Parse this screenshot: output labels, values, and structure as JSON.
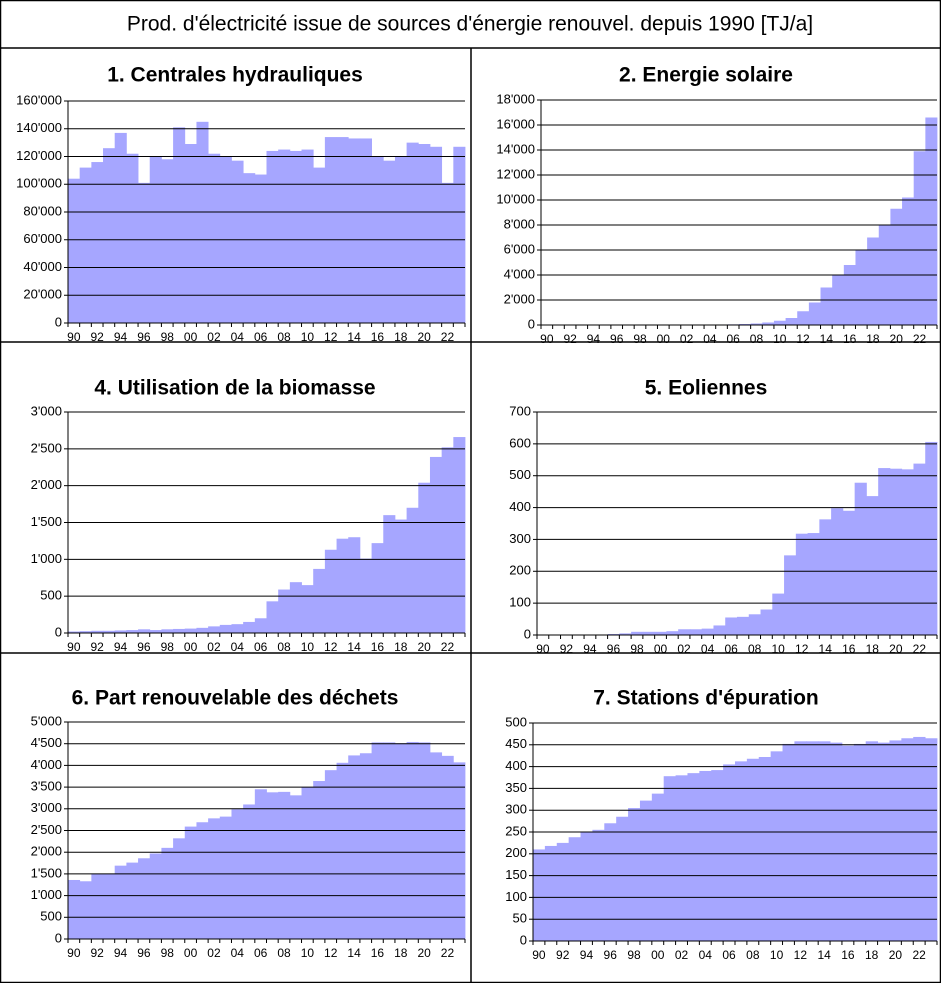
{
  "title": "Prod. d'électricité issue de sources d'énergie renouvel. depuis 1990 [TJ/a]",
  "chart_data": [
    {
      "type": "bar",
      "title": "1. Centrales hydrauliques",
      "color": "#a6a6ff",
      "grid": true,
      "categories": [
        "90",
        null,
        "92",
        null,
        "94",
        null,
        "96",
        null,
        "98",
        null,
        "00",
        null,
        "02",
        null,
        "04",
        null,
        "06",
        null,
        "08",
        null,
        "10",
        null,
        "12",
        null,
        "14",
        null,
        "16",
        null,
        "18",
        null,
        "20",
        null,
        "22",
        null
      ],
      "values": [
        104000,
        112000,
        116000,
        126000,
        137000,
        122000,
        101000,
        120000,
        118000,
        141000,
        129000,
        145000,
        122000,
        120000,
        117000,
        108000,
        107000,
        124000,
        125000,
        124000,
        125000,
        112000,
        134000,
        134000,
        133000,
        133000,
        120000,
        117000,
        120000,
        130000,
        129000,
        127000,
        101000,
        127000
      ],
      "ylim": [
        0,
        160000
      ],
      "yticks": [
        0,
        {
          "value": 20000,
          "label": "20'000"
        },
        {
          "value": 40000,
          "label": "40'000"
        },
        {
          "value": 60000,
          "label": "60'000"
        },
        {
          "value": 80000,
          "label": "80'000"
        },
        {
          "value": 100000,
          "label": "100'000"
        },
        {
          "value": 120000,
          "label": "120'000"
        },
        {
          "value": 140000,
          "label": "140'000"
        },
        {
          "value": 160000,
          "label": "160'000"
        }
      ]
    },
    {
      "type": "bar",
      "title": "2. Energie solaire",
      "color": "#a6a6ff",
      "grid": true,
      "categories": [
        "90",
        null,
        "92",
        null,
        "94",
        null,
        "96",
        null,
        "98",
        null,
        "00",
        null,
        "02",
        null,
        "04",
        null,
        "06",
        null,
        "08",
        null,
        "10",
        null,
        "12",
        null,
        "14",
        null,
        "16",
        null,
        "18",
        null,
        "20",
        null,
        "22",
        null
      ],
      "values": [
        1,
        1,
        2,
        2,
        3,
        3,
        4,
        5,
        6,
        7,
        8,
        10,
        12,
        15,
        20,
        30,
        50,
        80,
        120,
        200,
        340,
        560,
        1100,
        1800,
        3000,
        4000,
        4800,
        6000,
        7000,
        8000,
        9300,
        10200,
        13900,
        16600
      ],
      "ylim": [
        0,
        18000
      ],
      "yticks": [
        0,
        {
          "value": 2000,
          "label": "2'000"
        },
        {
          "value": 4000,
          "label": "4'000"
        },
        {
          "value": 6000,
          "label": "6'000"
        },
        {
          "value": 8000,
          "label": "8'000"
        },
        {
          "value": 10000,
          "label": "10'000"
        },
        {
          "value": 12000,
          "label": "12'000"
        },
        {
          "value": 14000,
          "label": "14'000"
        },
        {
          "value": 16000,
          "label": "16'000"
        },
        {
          "value": 18000,
          "label": "18'000"
        }
      ]
    },
    {
      "type": "bar",
      "title": "4. Utilisation de la biomasse",
      "color": "#a6a6ff",
      "grid": true,
      "categories": [
        "90",
        null,
        "92",
        null,
        "94",
        null,
        "96",
        null,
        "98",
        null,
        "00",
        null,
        "02",
        null,
        "04",
        null,
        "06",
        null,
        "08",
        null,
        "10",
        null,
        "12",
        null,
        "14",
        null,
        "16",
        null,
        "18",
        null,
        "20",
        null,
        "22",
        null
      ],
      "values": [
        20,
        25,
        30,
        30,
        35,
        40,
        50,
        40,
        50,
        55,
        60,
        70,
        90,
        110,
        120,
        150,
        200,
        430,
        590,
        690,
        650,
        870,
        1130,
        1280,
        1300,
        1010,
        1220,
        1600,
        1540,
        1700,
        2040,
        2390,
        2520,
        2660
      ],
      "ylim": [
        0,
        3000
      ],
      "yticks": [
        0,
        500,
        {
          "value": 1000,
          "label": "1'000"
        },
        {
          "value": 1500,
          "label": "1'500"
        },
        {
          "value": 2000,
          "label": "2'000"
        },
        {
          "value": 2500,
          "label": "2'500"
        },
        {
          "value": 3000,
          "label": "3'000"
        }
      ]
    },
    {
      "type": "bar",
      "title": "5. Eoliennes",
      "color": "#a6a6ff",
      "grid": true,
      "categories": [
        "90",
        null,
        "92",
        null,
        "94",
        null,
        "96",
        null,
        "98",
        null,
        "00",
        null,
        "02",
        null,
        "04",
        null,
        "06",
        null,
        "08",
        null,
        "10",
        null,
        "12",
        null,
        "14",
        null,
        "16",
        null,
        "18",
        null,
        "20",
        null,
        "22",
        null
      ],
      "values": [
        0,
        0,
        0,
        0,
        0,
        0,
        3,
        5,
        10,
        10,
        10,
        12,
        18,
        18,
        20,
        30,
        55,
        57,
        65,
        80,
        130,
        250,
        318,
        320,
        363,
        398,
        390,
        478,
        436,
        524,
        522,
        520,
        538,
        606
      ],
      "ylim": [
        0,
        700
      ],
      "yticks": [
        0,
        100,
        200,
        300,
        400,
        500,
        600,
        700
      ]
    },
    {
      "type": "bar",
      "title": "6. Part renouvelable des déchets",
      "color": "#a6a6ff",
      "grid": true,
      "categories": [
        "90",
        null,
        "92",
        null,
        "94",
        null,
        "96",
        null,
        "98",
        null,
        "00",
        null,
        "02",
        null,
        "04",
        null,
        "06",
        null,
        "08",
        null,
        "10",
        null,
        "12",
        null,
        "14",
        null,
        "16",
        null,
        "18",
        null,
        "20",
        null,
        "22",
        null
      ],
      "values": [
        1360,
        1330,
        1500,
        1500,
        1690,
        1760,
        1860,
        1970,
        2100,
        2320,
        2590,
        2690,
        2780,
        2820,
        2990,
        3100,
        3450,
        3380,
        3390,
        3310,
        3500,
        3640,
        3890,
        4060,
        4230,
        4280,
        4530,
        4530,
        4510,
        4540,
        4530,
        4300,
        4220,
        4070
      ],
      "ylim": [
        0,
        5000
      ],
      "yticks": [
        0,
        500,
        {
          "value": 1000,
          "label": "1'000"
        },
        {
          "value": 1500,
          "label": "1'500"
        },
        {
          "value": 2000,
          "label": "2'000"
        },
        {
          "value": 2500,
          "label": "2'500"
        },
        {
          "value": 3000,
          "label": "3'000"
        },
        {
          "value": 3500,
          "label": "3'500"
        },
        {
          "value": 4000,
          "label": "4'000"
        },
        {
          "value": 4500,
          "label": "4'500"
        },
        {
          "value": 5000,
          "label": "5'000"
        }
      ]
    },
    {
      "type": "bar",
      "title": "7. Stations d'épuration",
      "color": "#a6a6ff",
      "grid": true,
      "categories": [
        "90",
        null,
        "92",
        null,
        "94",
        null,
        "96",
        null,
        "98",
        null,
        "00",
        null,
        "02",
        null,
        "04",
        null,
        "06",
        null,
        "08",
        null,
        "10",
        null,
        "12",
        null,
        "14",
        null,
        "16",
        null,
        "18",
        null,
        "20",
        null,
        "22",
        null
      ],
      "values": [
        210,
        218,
        225,
        238,
        250,
        255,
        270,
        285,
        305,
        322,
        338,
        378,
        380,
        385,
        390,
        392,
        405,
        412,
        418,
        422,
        435,
        452,
        458,
        458,
        458,
        455,
        448,
        452,
        458,
        455,
        460,
        465,
        468,
        465
      ],
      "ylim": [
        0,
        500
      ],
      "yticks": [
        0,
        50,
        100,
        150,
        200,
        250,
        300,
        350,
        400,
        450,
        500
      ]
    }
  ]
}
